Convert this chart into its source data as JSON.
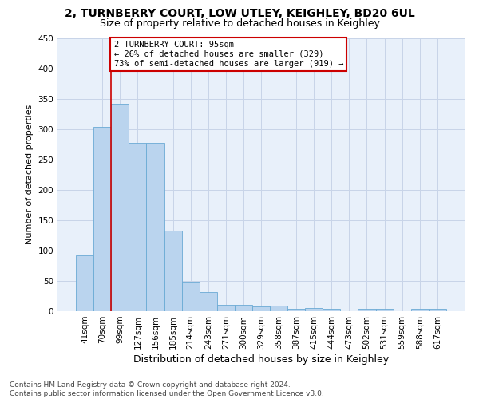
{
  "title_line1": "2, TURNBERRY COURT, LOW UTLEY, KEIGHLEY, BD20 6UL",
  "title_line2": "Size of property relative to detached houses in Keighley",
  "xlabel": "Distribution of detached houses by size in Keighley",
  "ylabel": "Number of detached properties",
  "categories": [
    "41sqm",
    "70sqm",
    "99sqm",
    "127sqm",
    "156sqm",
    "185sqm",
    "214sqm",
    "243sqm",
    "271sqm",
    "300sqm",
    "329sqm",
    "358sqm",
    "387sqm",
    "415sqm",
    "444sqm",
    "473sqm",
    "502sqm",
    "531sqm",
    "559sqm",
    "588sqm",
    "617sqm"
  ],
  "values": [
    92,
    303,
    342,
    277,
    277,
    133,
    47,
    31,
    10,
    10,
    8,
    9,
    4,
    5,
    4,
    0,
    4,
    4,
    0,
    4,
    4
  ],
  "bar_color": "#bad4ee",
  "bar_edge_color": "#6aaad4",
  "bg_axes_color": "#e8f0fa",
  "background_color": "#ffffff",
  "grid_color": "#c8d4e8",
  "vline_x_index": 2,
  "vline_color": "#cc0000",
  "annotation_line1": "2 TURNBERRY COURT: 95sqm",
  "annotation_line2": "← 26% of detached houses are smaller (329)",
  "annotation_line3": "73% of semi-detached houses are larger (919) →",
  "annotation_box_color": "#ffffff",
  "annotation_box_edge_color": "#cc0000",
  "ylim": [
    0,
    450
  ],
  "yticks": [
    0,
    50,
    100,
    150,
    200,
    250,
    300,
    350,
    400,
    450
  ],
  "footer_line1": "Contains HM Land Registry data © Crown copyright and database right 2024.",
  "footer_line2": "Contains public sector information licensed under the Open Government Licence v3.0.",
  "title_fontsize": 10,
  "subtitle_fontsize": 9,
  "ylabel_fontsize": 8,
  "xlabel_fontsize": 9,
  "tick_fontsize": 7.5,
  "annotation_fontsize": 7.5,
  "footer_fontsize": 6.5
}
